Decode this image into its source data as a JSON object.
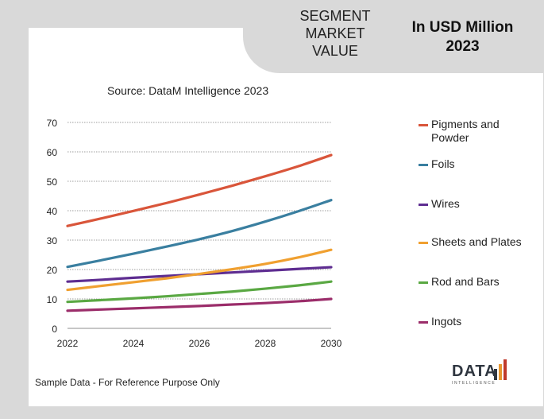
{
  "header": {
    "segment_title": [
      "SEGMENT",
      "MARKET",
      "VALUE"
    ],
    "unit_title": [
      "In USD Million",
      "2023"
    ]
  },
  "source": "Source: DataM Intelligence  2023",
  "footnote": "Sample Data - For Reference Purpose Only",
  "logo": {
    "text": "DATA",
    "sub": "INTELLIGENCE"
  },
  "chart_data": {
    "type": "line",
    "title": "",
    "xlabel": "",
    "ylabel": "",
    "x": [
      2022,
      2023,
      2024,
      2025,
      2026,
      2027,
      2028,
      2029,
      2030
    ],
    "xticks": [
      2022,
      2024,
      2026,
      2028,
      2030
    ],
    "yticks": [
      0,
      10,
      20,
      30,
      40,
      50,
      60,
      70
    ],
    "xlim": [
      2022,
      2030
    ],
    "ylim": [
      0,
      70
    ],
    "grid": true,
    "legend_position": "right",
    "series": [
      {
        "name": "Pigments and Powder",
        "color": "#d9553a",
        "values": [
          34.8,
          37.3,
          39.9,
          42.6,
          45.5,
          48.5,
          51.7,
          55.1,
          58.9
        ]
      },
      {
        "name": "Foils",
        "color": "#3a7fa0",
        "values": [
          20.9,
          23.1,
          25.4,
          27.8,
          30.3,
          33.1,
          36.3,
          39.8,
          43.6
        ]
      },
      {
        "name": "Wires",
        "color": "#5e2d91",
        "values": [
          15.9,
          16.5,
          17.2,
          17.8,
          18.4,
          19.0,
          19.6,
          20.2,
          20.8
        ]
      },
      {
        "name": "Sheets and Plates",
        "color": "#f0a030",
        "values": [
          13.1,
          14.4,
          15.7,
          17.0,
          18.5,
          20.1,
          21.9,
          24.1,
          26.7
        ]
      },
      {
        "name": "Rod and Bars",
        "color": "#5aa843",
        "values": [
          9.0,
          9.6,
          10.2,
          10.9,
          11.7,
          12.5,
          13.5,
          14.6,
          15.9
        ]
      },
      {
        "name": "Ingots",
        "color": "#9b2d6a",
        "values": [
          6.0,
          6.4,
          6.8,
          7.2,
          7.6,
          8.1,
          8.6,
          9.2,
          10.0
        ]
      }
    ]
  }
}
